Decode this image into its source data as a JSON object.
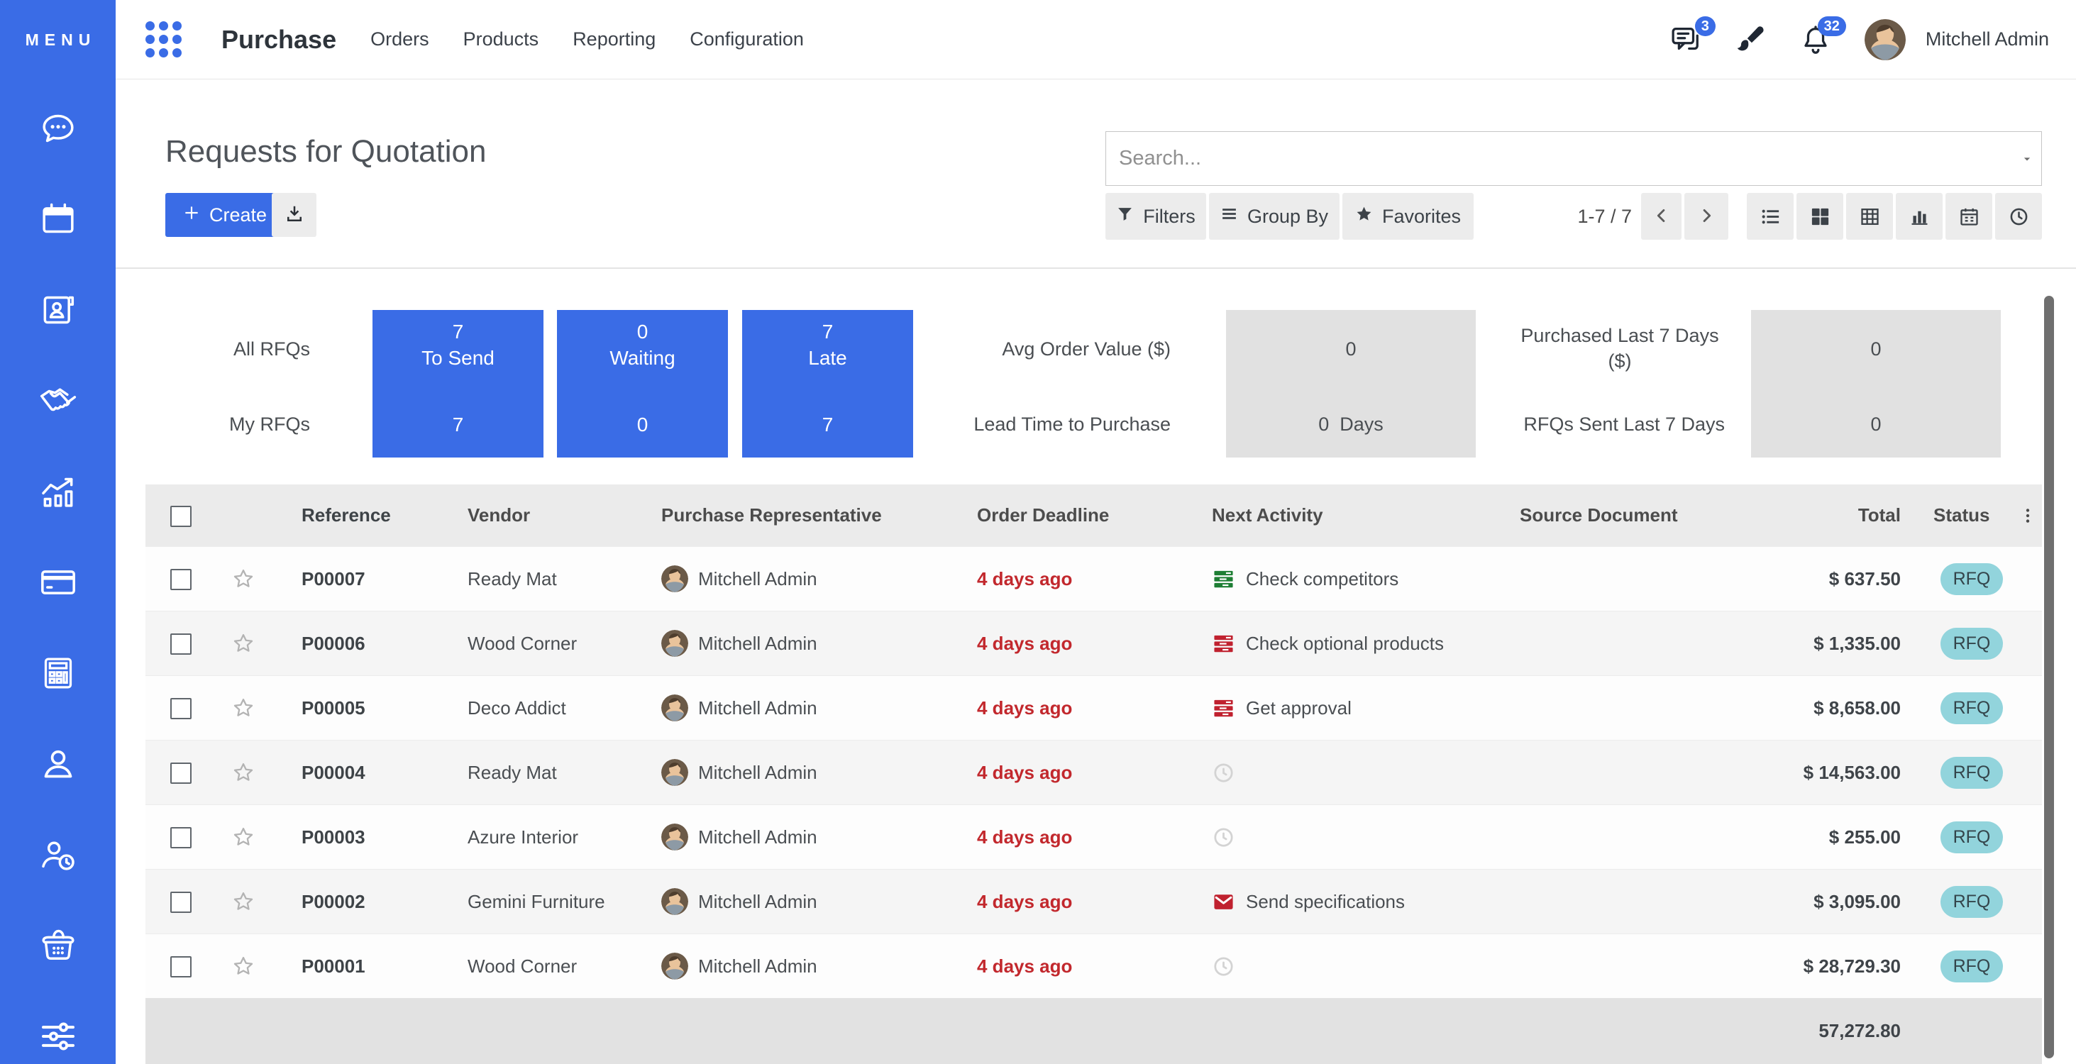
{
  "colors": {
    "brand_blue": "#3a6ce6",
    "danger_red": "#c2282d",
    "activity_green": "#1e7e34",
    "activity_red": "#c0212f",
    "badge_teal_bg": "#92d4dc",
    "badge_teal_text": "#34454b",
    "tile_gray": "#e1e1e1",
    "header_gray": "#ebebeb",
    "footer_gray": "#e2e2e2"
  },
  "sidebar": {
    "menu_label": "MENU",
    "icons": [
      "messages",
      "calendar",
      "contacts",
      "handshake",
      "sales-chart",
      "credit-card",
      "calculator",
      "employee",
      "time-off",
      "purchase-basket",
      "settings-sliders"
    ]
  },
  "topnav": {
    "app_name": "Purchase",
    "items": [
      "Orders",
      "Products",
      "Reporting",
      "Configuration"
    ],
    "messages_badge": "3",
    "activities_badge": "32",
    "user_name": "Mitchell Admin"
  },
  "control_panel": {
    "title": "Requests for Quotation",
    "create_label": "Create",
    "search_placeholder": "Search...",
    "filters_label": "Filters",
    "group_by_label": "Group By",
    "favorites_label": "Favorites",
    "pager": "1-7 / 7",
    "view_switcher": [
      "list",
      "kanban",
      "pivot",
      "graph",
      "calendar",
      "activity"
    ]
  },
  "dashboard": {
    "row_labels": [
      "All RFQs",
      "My RFQs"
    ],
    "rfq_tiles": [
      {
        "top_value": "7",
        "top_label": "To Send",
        "bottom_value": "7"
      },
      {
        "top_value": "0",
        "top_label": "Waiting",
        "bottom_value": "0"
      },
      {
        "top_value": "7",
        "top_label": "Late",
        "bottom_value": "7"
      }
    ],
    "metric_groups": [
      {
        "top_label": "Avg Order Value ($)",
        "top_value": "0",
        "bottom_label": "Lead Time to Purchase",
        "bottom_value": "0  Days"
      },
      {
        "top_label": "Purchased Last 7 Days ($)",
        "top_value": "0",
        "bottom_label": "RFQs Sent Last 7 Days",
        "bottom_value": "0"
      }
    ]
  },
  "table": {
    "columns": [
      "Reference",
      "Vendor",
      "Purchase Representative",
      "Order Deadline",
      "Next Activity",
      "Source Document",
      "Total",
      "Status"
    ],
    "rows": [
      {
        "reference": "P00007",
        "vendor": "Ready Mat",
        "representative": "Mitchell Admin",
        "deadline": "4 days ago",
        "activity_icon": "tasks-green",
        "activity": "Check competitors",
        "source": "",
        "total": "$ 637.50",
        "status": "RFQ"
      },
      {
        "reference": "P00006",
        "vendor": "Wood Corner",
        "representative": "Mitchell Admin",
        "deadline": "4 days ago",
        "activity_icon": "tasks-red",
        "activity": "Check optional products",
        "source": "",
        "total": "$ 1,335.00",
        "status": "RFQ"
      },
      {
        "reference": "P00005",
        "vendor": "Deco Addict",
        "representative": "Mitchell Admin",
        "deadline": "4 days ago",
        "activity_icon": "tasks-red",
        "activity": "Get approval",
        "source": "",
        "total": "$ 8,658.00",
        "status": "RFQ"
      },
      {
        "reference": "P00004",
        "vendor": "Ready Mat",
        "representative": "Mitchell Admin",
        "deadline": "4 days ago",
        "activity_icon": "clock",
        "activity": "",
        "source": "",
        "total": "$ 14,563.00",
        "status": "RFQ"
      },
      {
        "reference": "P00003",
        "vendor": "Azure Interior",
        "representative": "Mitchell Admin",
        "deadline": "4 days ago",
        "activity_icon": "clock",
        "activity": "",
        "source": "",
        "total": "$ 255.00",
        "status": "RFQ"
      },
      {
        "reference": "P00002",
        "vendor": "Gemini Furniture",
        "representative": "Mitchell Admin",
        "deadline": "4 days ago",
        "activity_icon": "envelope-red",
        "activity": "Send specifications",
        "source": "",
        "total": "$ 3,095.00",
        "status": "RFQ"
      },
      {
        "reference": "P00001",
        "vendor": "Wood Corner",
        "representative": "Mitchell Admin",
        "deadline": "4 days ago",
        "activity_icon": "clock",
        "activity": "",
        "source": "",
        "total": "$ 28,729.30",
        "status": "RFQ"
      }
    ],
    "footer_total": "57,272.80"
  }
}
